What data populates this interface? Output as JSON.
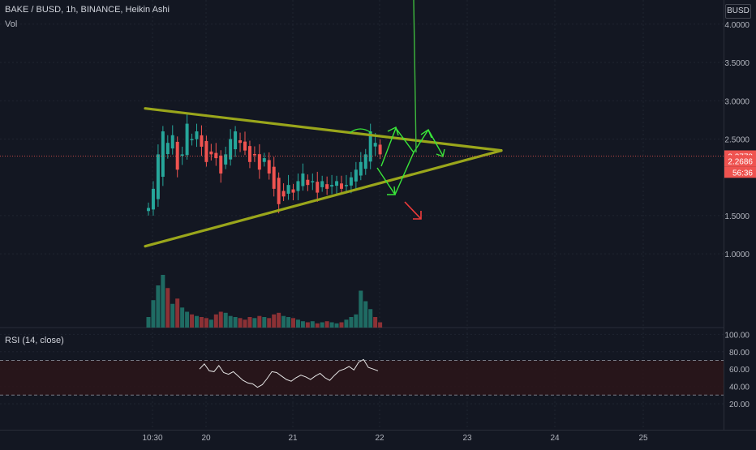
{
  "header": {
    "title": "BAKE / BUSD, 1h, BINANCE, Heikin Ashi",
    "volume_label": "Vol",
    "currency": "BUSD"
  },
  "rsi": {
    "label": "RSI (14, close)",
    "ticks": [
      "100.00",
      "80.00",
      "60.00",
      "40.00",
      "20.00"
    ],
    "upper_band": 70,
    "lower_band": 30
  },
  "price_labels": {
    "last_price": "2.2778",
    "second_price": "2.2686",
    "countdown": "56:36"
  },
  "colors": {
    "background": "#131722",
    "grid": "#1f2430",
    "up": "#26a69a",
    "down": "#ef5350",
    "trendline": "#9aa61b",
    "arrow_green": "#39e639",
    "arrow_red": "#ef3b3b",
    "rsi_line": "#e6e6e6",
    "rsi_band": "#2b1519",
    "axis_text": "#b2b5be"
  },
  "chart_data": [
    {
      "type": "candlestick",
      "title": "BAKE / BUSD, 1h, BINANCE, Heikin Ashi",
      "x_ticks": [
        "10:30",
        "20",
        "21",
        "22",
        "23",
        "24",
        "25"
      ],
      "y_ticks": [
        "4.0000",
        "3.5000",
        "3.0000",
        "2.5000",
        "1.5000",
        "1.0000"
      ],
      "y_range": [
        0.55,
        4.1
      ],
      "close_series": [
        1.6,
        1.85,
        2.3,
        2.6,
        2.45,
        2.55,
        2.1,
        2.3,
        2.7,
        2.5,
        2.6,
        2.4,
        2.2,
        2.3,
        2.25,
        2.05,
        2.3,
        2.5,
        2.6,
        2.45,
        2.35,
        2.2,
        2.3,
        2.1,
        2.25,
        2.05,
        1.85,
        1.65,
        1.75,
        1.9,
        1.8,
        1.95,
        2.05,
        1.9,
        1.95,
        1.8,
        1.95,
        1.85,
        1.9,
        1.95,
        1.85,
        1.9,
        2.0,
        2.1,
        2.2,
        2.3,
        2.6,
        2.45,
        2.3
      ],
      "trendlines": [
        {
          "from": {
            "x": "10:30",
            "y": 2.9
          },
          "to": {
            "x": "23",
            "y": 2.35
          }
        },
        {
          "from": {
            "x": "10:30",
            "y": 1.1
          },
          "to": {
            "x": "23",
            "y": 2.35
          }
        }
      ]
    },
    {
      "type": "bar",
      "title": "Vol",
      "values": [
        0.2,
        0.52,
        0.8,
        1.0,
        0.75,
        0.45,
        0.55,
        0.38,
        0.3,
        0.25,
        0.22,
        0.2,
        0.18,
        0.15,
        0.25,
        0.3,
        0.28,
        0.22,
        0.2,
        0.18,
        0.15,
        0.2,
        0.18,
        0.22,
        0.2,
        0.18,
        0.25,
        0.28,
        0.22,
        0.2,
        0.18,
        0.15,
        0.12,
        0.1,
        0.12,
        0.08,
        0.1,
        0.12,
        0.1,
        0.08,
        0.1,
        0.15,
        0.2,
        0.25,
        0.7,
        0.5,
        0.35,
        0.2,
        0.1
      ]
    },
    {
      "type": "line",
      "title": "RSI (14, close)",
      "y_range": [
        15,
        102
      ],
      "values": [
        60,
        66,
        58,
        57,
        64,
        56,
        54,
        57,
        52,
        47,
        44,
        43,
        39,
        42,
        49,
        57,
        56,
        52,
        48,
        46,
        50,
        53,
        51,
        48,
        52,
        55,
        50,
        47,
        53,
        58,
        60,
        63,
        59,
        68,
        71,
        62,
        60,
        58
      ]
    }
  ]
}
